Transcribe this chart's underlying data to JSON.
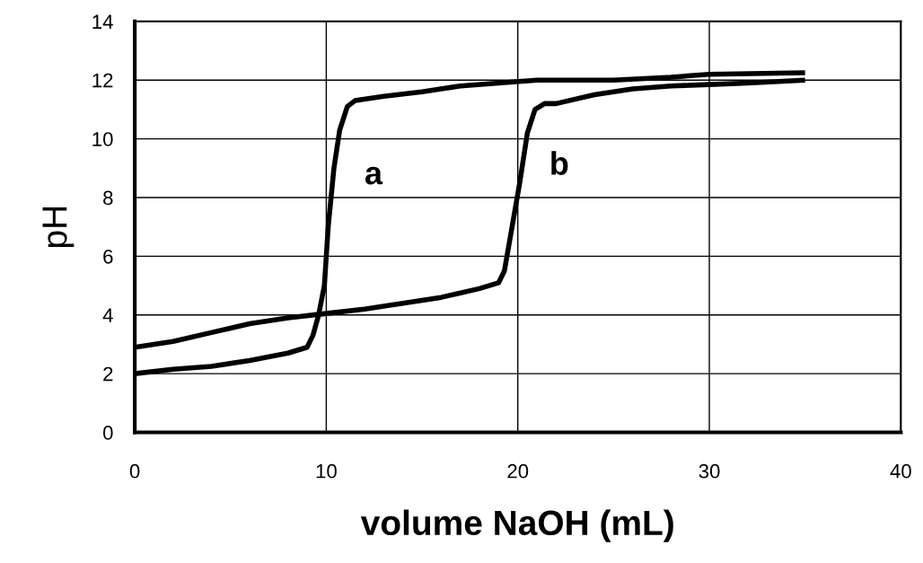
{
  "chart_data": {
    "type": "line",
    "xlabel": "volume NaOH (mL)",
    "ylabel": "pH",
    "xlim": [
      0,
      40
    ],
    "ylim": [
      0,
      14
    ],
    "xticks": [
      0,
      10,
      20,
      30,
      40
    ],
    "yticks": [
      0,
      2,
      4,
      6,
      8,
      10,
      12,
      14
    ],
    "grid": true,
    "marker": "none",
    "line_style": "solid",
    "series": [
      {
        "name": "a",
        "color": "#000000",
        "x": [
          0,
          2,
          4,
          6,
          8,
          9,
          9.3,
          9.6,
          9.9,
          10.1,
          10.4,
          10.7,
          11.1,
          11.5,
          13,
          15,
          17,
          19,
          21,
          25,
          28,
          30,
          35
        ],
        "values": [
          2.0,
          2.15,
          2.25,
          2.45,
          2.7,
          2.9,
          3.3,
          4,
          5,
          7,
          9,
          10.3,
          11.1,
          11.3,
          11.45,
          11.6,
          11.8,
          11.9,
          12.0,
          12.0,
          12.1,
          12.2,
          12.25
        ]
      },
      {
        "name": "b",
        "color": "#000000",
        "x": [
          0,
          2,
          4,
          6,
          8,
          10,
          12,
          14,
          16,
          18,
          19,
          19.3,
          19.7,
          20.1,
          20.5,
          20.9,
          21.4,
          22,
          24,
          26,
          28,
          30,
          32,
          35
        ],
        "values": [
          2.9,
          3.1,
          3.4,
          3.7,
          3.9,
          4.05,
          4.2,
          4.4,
          4.6,
          4.9,
          5.1,
          5.5,
          7,
          8.5,
          10.2,
          11.0,
          11.2,
          11.2,
          11.5,
          11.7,
          11.8,
          11.85,
          11.9,
          12.0
        ]
      }
    ]
  }
}
